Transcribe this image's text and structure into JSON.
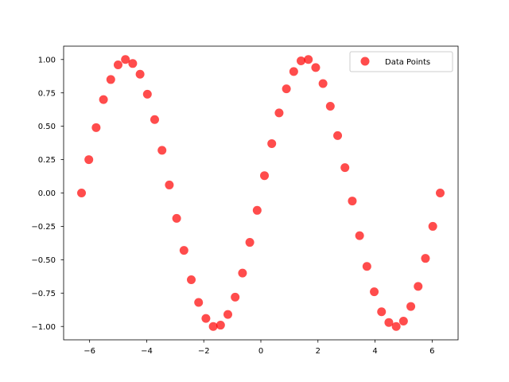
{
  "chart_data": {
    "type": "scatter",
    "title": "",
    "xlabel": "",
    "ylabel": "",
    "xlim": [
      -6.91,
      6.91
    ],
    "ylim": [
      -1.1,
      1.1
    ],
    "xticks": [
      -6,
      -4,
      -2,
      0,
      2,
      4,
      6
    ],
    "xtick_labels": [
      "−6",
      "−4",
      "−2",
      "0",
      "2",
      "4",
      "6"
    ],
    "yticks": [
      -1.0,
      -0.75,
      -0.5,
      -0.25,
      0.0,
      0.25,
      0.5,
      0.75,
      1.0
    ],
    "ytick_labels": [
      "−1.00",
      "−0.75",
      "−0.50",
      "−0.25",
      "0.00",
      "0.25",
      "0.50",
      "0.75",
      "1.00"
    ],
    "grid": false,
    "legend_position": "top-right",
    "series": [
      {
        "name": "Data Points",
        "color": "#ff0000",
        "marker": "circle",
        "points": [
          [
            -6.283,
            0.0
          ],
          [
            -6.027,
            0.25
          ],
          [
            -5.771,
            0.49
          ],
          [
            -5.514,
            0.7
          ],
          [
            -5.258,
            0.85
          ],
          [
            -5.002,
            0.96
          ],
          [
            -4.745,
            1.0
          ],
          [
            -4.489,
            0.97
          ],
          [
            -4.232,
            0.89
          ],
          [
            -3.976,
            0.74
          ],
          [
            -3.72,
            0.55
          ],
          [
            -3.463,
            0.32
          ],
          [
            -3.207,
            0.06
          ],
          [
            -2.951,
            -0.19
          ],
          [
            -2.694,
            -0.43
          ],
          [
            -2.438,
            -0.65
          ],
          [
            -2.181,
            -0.82
          ],
          [
            -1.925,
            -0.94
          ],
          [
            -1.669,
            -1.0
          ],
          [
            -1.412,
            -0.99
          ],
          [
            -1.156,
            -0.91
          ],
          [
            -0.9,
            -0.78
          ],
          [
            -0.643,
            -0.6
          ],
          [
            -0.387,
            -0.37
          ],
          [
            -0.13,
            -0.13
          ],
          [
            0.126,
            0.13
          ],
          [
            0.382,
            0.37
          ],
          [
            0.639,
            0.6
          ],
          [
            0.895,
            0.78
          ],
          [
            1.152,
            0.91
          ],
          [
            1.408,
            0.99
          ],
          [
            1.664,
            1.0
          ],
          [
            1.921,
            0.94
          ],
          [
            2.177,
            0.82
          ],
          [
            2.433,
            0.65
          ],
          [
            2.69,
            0.43
          ],
          [
            2.946,
            0.19
          ],
          [
            3.203,
            -0.06
          ],
          [
            3.459,
            -0.32
          ],
          [
            3.715,
            -0.55
          ],
          [
            3.972,
            -0.74
          ],
          [
            4.228,
            -0.89
          ],
          [
            4.484,
            -0.97
          ],
          [
            4.741,
            -1.0
          ],
          [
            4.997,
            -0.96
          ],
          [
            5.254,
            -0.85
          ],
          [
            5.51,
            -0.7
          ],
          [
            5.766,
            -0.49
          ],
          [
            6.023,
            -0.25
          ],
          [
            6.283,
            0.0
          ]
        ]
      }
    ]
  }
}
